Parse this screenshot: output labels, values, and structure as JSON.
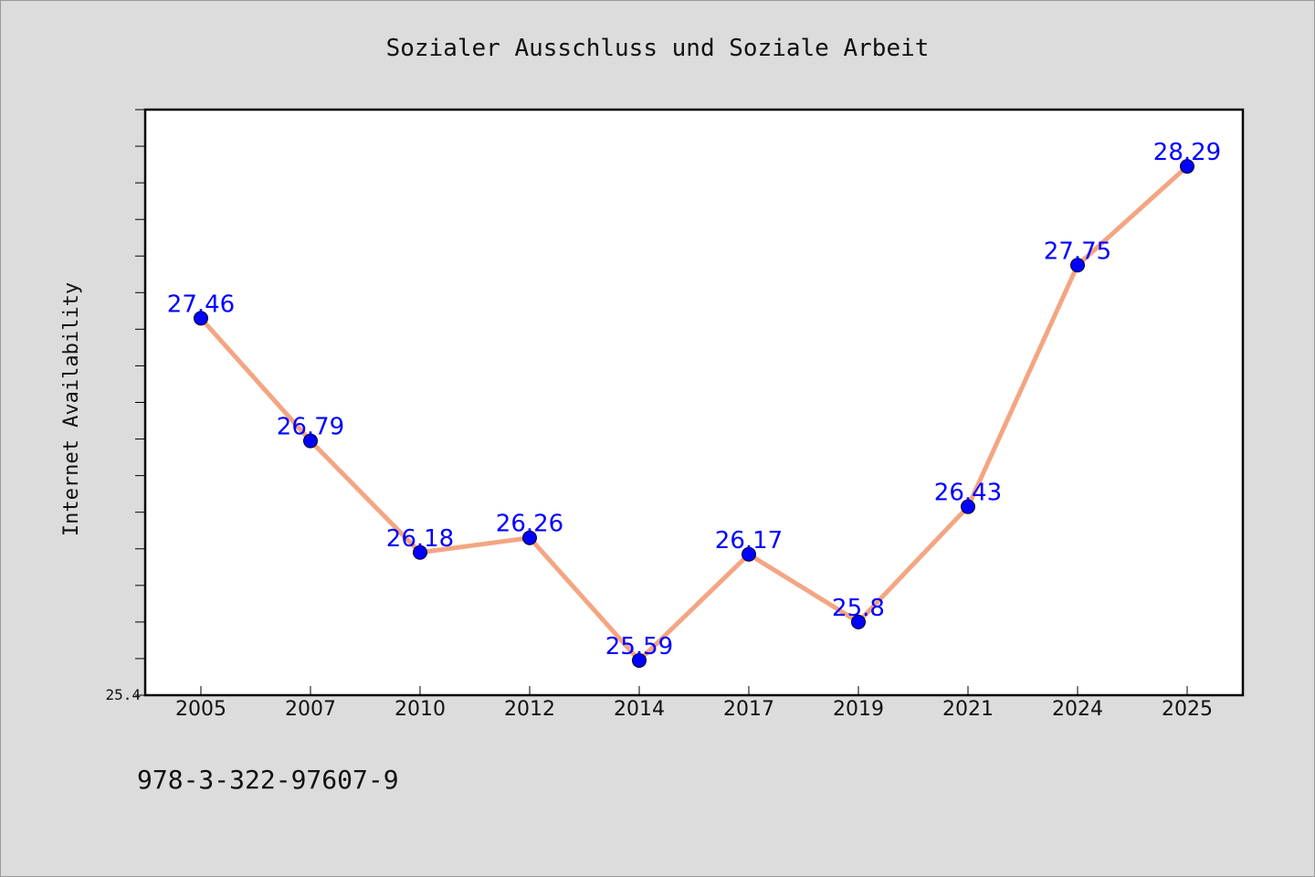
{
  "chart_data": {
    "type": "line",
    "title": "Sozialer Ausschluss und Soziale Arbeit",
    "ylabel": "Internet Availability",
    "xlabel": "",
    "categories": [
      "2005",
      "2007",
      "2010",
      "2012",
      "2014",
      "2017",
      "2019",
      "2021",
      "2024",
      "2025"
    ],
    "series": [
      {
        "values": [
          27.46,
          26.79,
          26.18,
          26.26,
          25.59,
          26.17,
          25.8,
          26.43,
          27.75,
          28.29
        ],
        "labels": [
          "27.46",
          "26.79",
          "26.18",
          "26.26",
          "25.59",
          "26.17",
          "25.8",
          "26.43",
          "27.75",
          "28.29"
        ]
      }
    ],
    "ylim": [
      25.4,
      28.6
    ],
    "yticks_labeled": [
      "25.4"
    ],
    "grid": false,
    "legend": "none",
    "colors": {
      "line": "#f4a582",
      "marker": "#0000ff",
      "data_label": "#0000ff",
      "plot_background": "#ffffff",
      "page_background": "#dcdcdc"
    }
  },
  "footer": {
    "isbn": "978-3-322-97607-9"
  }
}
